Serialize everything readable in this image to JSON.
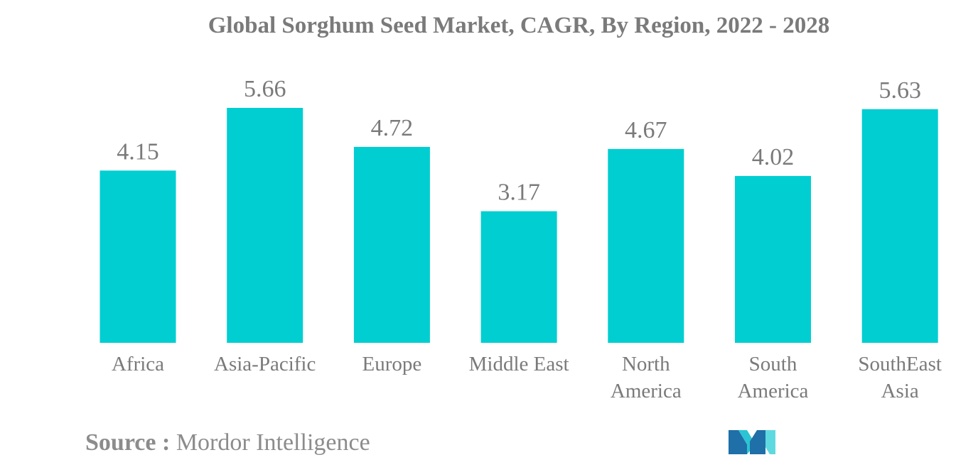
{
  "chart_data": {
    "type": "bar",
    "title": "Global Sorghum Seed Market, CAGR, By Region, 2022 - 2028",
    "categories": [
      [
        "Africa"
      ],
      [
        "Asia-Pacific"
      ],
      [
        "Europe"
      ],
      [
        "Middle East"
      ],
      [
        "North",
        "America"
      ],
      [
        "South",
        "America"
      ],
      [
        "SouthEast",
        "Asia"
      ]
    ],
    "values": [
      4.15,
      5.66,
      4.72,
      3.17,
      4.67,
      4.02,
      5.63
    ],
    "value_labels": [
      "4.15",
      "5.66",
      "4.72",
      "3.17",
      "4.67",
      "4.02",
      "5.63"
    ],
    "xlabel": "",
    "ylabel": "",
    "ylim": [
      0,
      5.66
    ],
    "grid": false,
    "legend": "none",
    "bar_color": "#00ced1",
    "label_color": "#7a7a7a"
  },
  "source": {
    "label": "Source :",
    "text": "Mordor Intelligence"
  },
  "logo": {
    "icon": "mordor-intelligence-logo-icon",
    "colors": [
      "#1f6fa8",
      "#2bc4d4",
      "#5fd9e0"
    ]
  }
}
